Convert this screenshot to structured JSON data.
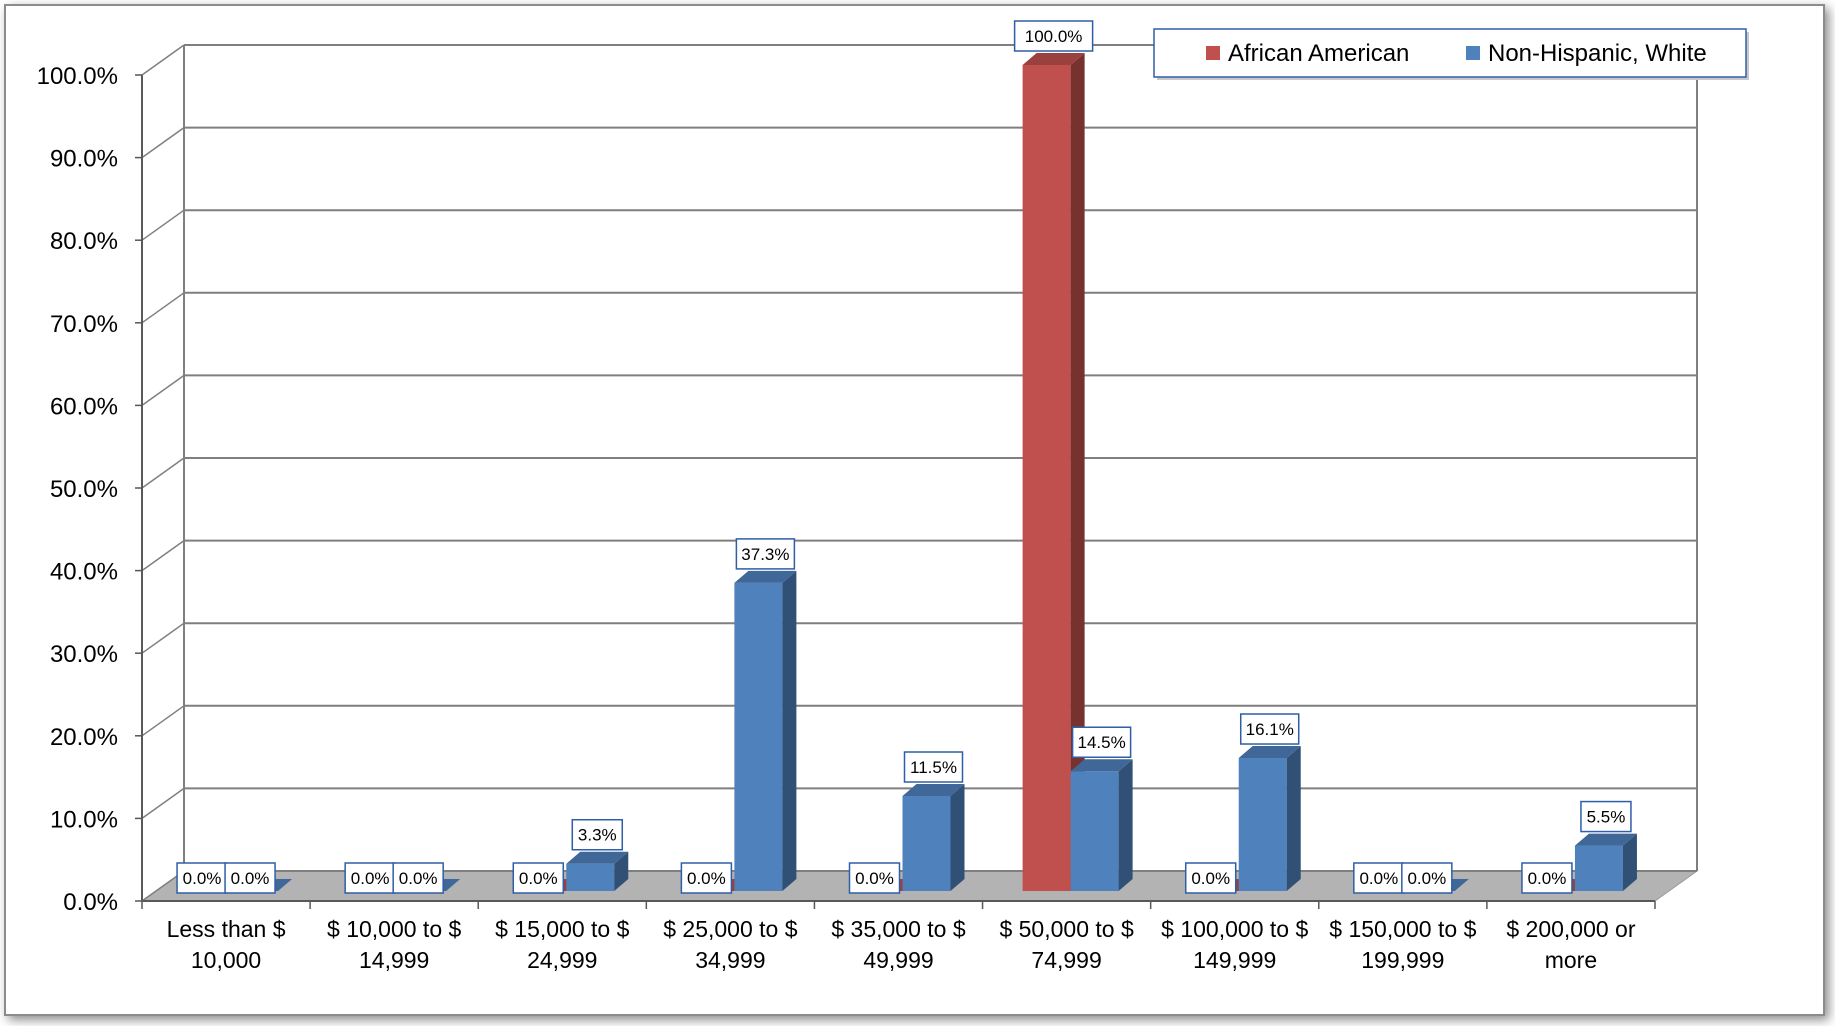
{
  "chart_data": {
    "type": "bar",
    "title": "",
    "xlabel": "",
    "ylabel": "",
    "ylim": [
      0,
      100
    ],
    "yticks": [
      "0.0%",
      "10.0%",
      "20.0%",
      "30.0%",
      "40.0%",
      "50.0%",
      "60.0%",
      "70.0%",
      "80.0%",
      "90.0%",
      "100.0%"
    ],
    "categories": [
      [
        "Less than $",
        "10,000"
      ],
      [
        "$ 10,000 to $",
        "14,999"
      ],
      [
        "$ 15,000 to  $",
        "24,999"
      ],
      [
        "$ 25,000 to $",
        "34,999"
      ],
      [
        "$ 35,000 to $",
        "49,999"
      ],
      [
        "$ 50,000 to $",
        "74,999"
      ],
      [
        "$ 100,000 to $",
        "149,999"
      ],
      [
        "$ 150,000 to $",
        "199,999"
      ],
      [
        "$ 200,000 or",
        "more"
      ]
    ],
    "series": [
      {
        "name": "African American",
        "color": "#c0504d",
        "values": [
          0.0,
          0.0,
          0.0,
          0.0,
          0.0,
          100.0,
          0.0,
          0.0,
          0.0
        ],
        "labels": [
          "0.0%",
          "0.0%",
          "0.0%",
          "0.0%",
          "0.0%",
          "100.0%",
          "0.0%",
          "0.0%",
          "0.0%"
        ]
      },
      {
        "name": "Non-Hispanic, White",
        "color": "#4f81bd",
        "values": [
          0.0,
          0.0,
          3.3,
          37.3,
          11.5,
          14.5,
          16.1,
          0.0,
          5.5
        ],
        "labels": [
          "0.0%",
          "0.0%",
          "3.3%",
          "37.3%",
          "11.5%",
          "14.5%",
          "16.1%",
          "0.0%",
          "5.5%"
        ]
      }
    ],
    "legend_position": "top-right",
    "grid": true,
    "style": "3d-clustered-column"
  }
}
